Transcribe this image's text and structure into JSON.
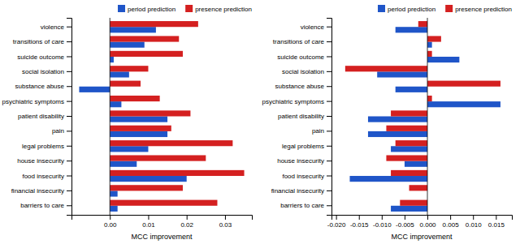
{
  "chart_data": [
    {
      "type": "bar",
      "orientation": "horizontal",
      "legend": "top",
      "xlabel": "MCC improvement",
      "categories": [
        "barriers to care",
        "financial insecurity",
        "food insecurity",
        "house insecurity",
        "legal problems",
        "pain",
        "patient disability",
        "psychiatric symptoms",
        "substance abuse",
        "social isolation",
        "suicide outcome",
        "transitions of care",
        "violence"
      ],
      "series": [
        {
          "name": "period prediction",
          "color": "#1f55c8",
          "values": [
            0.002,
            0.002,
            0.02,
            0.007,
            0.01,
            0.015,
            0.015,
            0.003,
            -0.008,
            0.005,
            0.001,
            0.009,
            0.012
          ]
        },
        {
          "name": "presence prediction",
          "color": "#d42020",
          "values": [
            0.028,
            0.019,
            0.035,
            0.025,
            0.032,
            0.016,
            0.021,
            0.013,
            0.008,
            0.01,
            0.019,
            0.018,
            0.023
          ]
        }
      ],
      "xlim": [
        -0.01,
        0.037
      ],
      "xticks": [
        {
          "value": 0,
          "label": "0.00"
        },
        0.01,
        0.02,
        0.03
      ]
    },
    {
      "type": "bar",
      "orientation": "horizontal",
      "legend": "top",
      "xlabel": "MCC improvement",
      "categories": [
        "barriers to care",
        "financial insecurity",
        "food insecurity",
        "house insecurity",
        "legal problems",
        "pain",
        "patient disability",
        "psychiatric symptoms",
        "substance abuse",
        "social isolation",
        "suicide outcome",
        "transitions of care",
        "violence"
      ],
      "series": [
        {
          "name": "period prediction",
          "color": "#1f55c8",
          "values": [
            -0.008,
            0.0,
            -0.017,
            -0.005,
            -0.008,
            -0.013,
            -0.013,
            0.016,
            -0.007,
            -0.011,
            0.007,
            0.001,
            -0.007
          ]
        },
        {
          "name": "presence prediction",
          "color": "#d42020",
          "values": [
            -0.006,
            -0.004,
            -0.008,
            -0.009,
            -0.007,
            -0.009,
            -0.008,
            0.001,
            0.016,
            -0.018,
            0.001,
            0.003,
            -0.002
          ]
        }
      ],
      "xlim": [
        -0.021,
        0.0185
      ],
      "xticks": [
        {
          "value": -0.02,
          "label": "-0.020"
        },
        -0.015,
        {
          "value": -0.01,
          "label": "-0.010"
        },
        -0.005,
        {
          "value": 0,
          "label": "0.000"
        },
        0.005,
        {
          "value": 0.01,
          "label": "0.010"
        },
        0.015
      ]
    }
  ]
}
